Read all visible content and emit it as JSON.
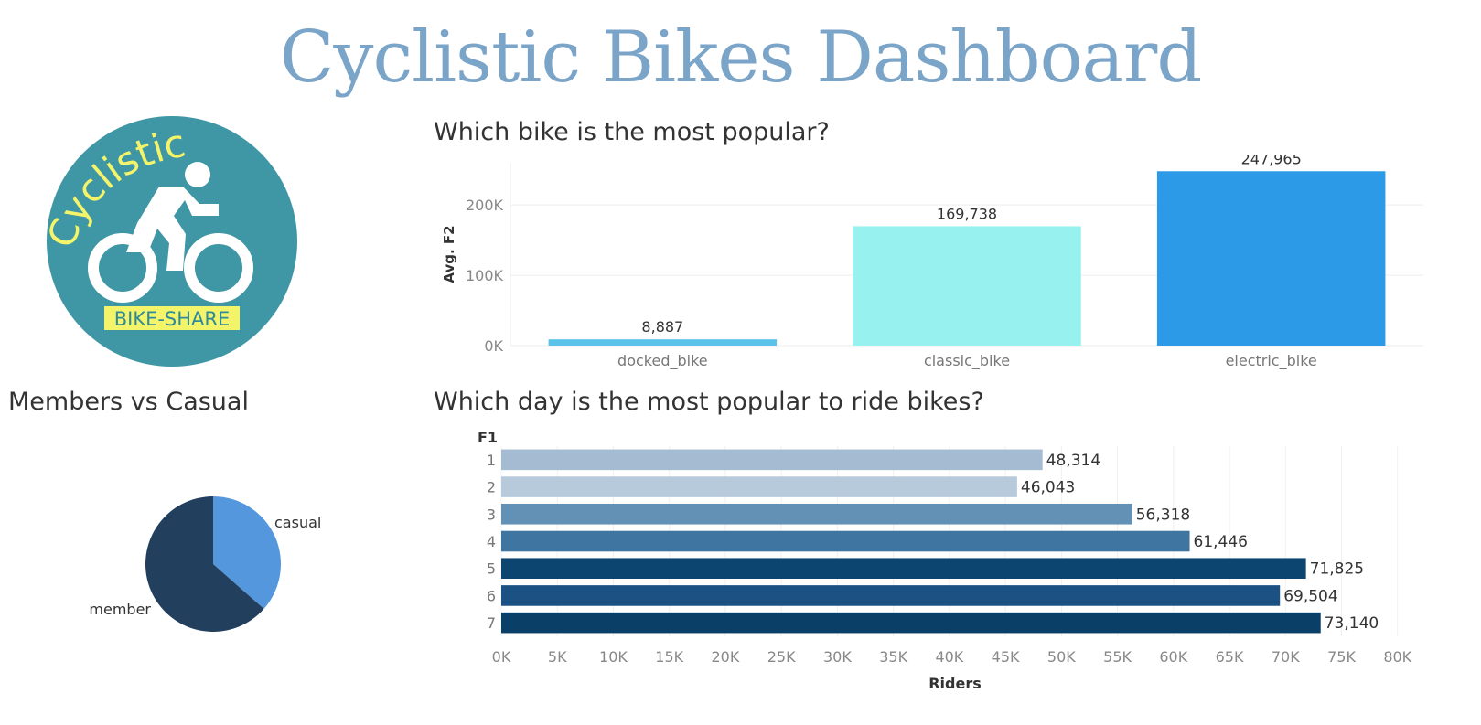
{
  "dashboard_title": "Cyclistic Bikes Dashboard",
  "logo": {
    "word": "Cyclistic",
    "banner": "BIKE-SHARE",
    "icon": "cyclist-icon",
    "bg_color": "#3f96a5",
    "accent_color": "#f4f46a"
  },
  "pie_title": "Members vs Casual",
  "bar_title": "Which bike is the most popular?",
  "day_title": "Which day is the most popular to ride bikes?",
  "chart_data": [
    {
      "type": "bar",
      "categories": [
        "docked_bike",
        "classic_bike",
        "electric_bike"
      ],
      "values": [
        8887,
        169738,
        247965
      ],
      "value_labels": [
        "8,887",
        "169,738",
        "247,965"
      ],
      "ylabel": "Avg. F2",
      "yticks": [
        "0K",
        "100K",
        "200K"
      ],
      "ytick_values": [
        0,
        100000,
        200000
      ],
      "ylim": [
        0,
        260000
      ],
      "colors": [
        "#5bc3ea",
        "#97f1ee",
        "#2d9ae8"
      ],
      "grid": true
    },
    {
      "type": "pie",
      "slices": [
        {
          "label": "casual",
          "value": 0.365,
          "color": "#5597dd"
        },
        {
          "label": "member",
          "value": 0.635,
          "color": "#223f5e"
        }
      ]
    },
    {
      "type": "bar",
      "orientation": "horizontal",
      "header": "F1",
      "categories": [
        "1",
        "2",
        "3",
        "4",
        "5",
        "6",
        "7"
      ],
      "values": [
        48314,
        46043,
        56318,
        61446,
        71825,
        69504,
        73140
      ],
      "value_labels": [
        "48,314",
        "46,043",
        "56,318",
        "61,446",
        "71,825",
        "69,504",
        "73,140"
      ],
      "colors": [
        "#a4bbd1",
        "#b7cadb",
        "#6390b5",
        "#3f75a1",
        "#0c4670",
        "#1b5283",
        "#0a4067"
      ],
      "xlabel": "Riders",
      "xticks": [
        "0K",
        "5K",
        "10K",
        "15K",
        "20K",
        "25K",
        "30K",
        "35K",
        "40K",
        "45K",
        "50K",
        "55K",
        "60K",
        "65K",
        "70K",
        "75K",
        "80K"
      ],
      "xtick_values": [
        0,
        5000,
        10000,
        15000,
        20000,
        25000,
        30000,
        35000,
        40000,
        45000,
        50000,
        55000,
        60000,
        65000,
        70000,
        75000,
        80000
      ],
      "xlim": [
        0,
        81000
      ],
      "grid": true
    }
  ]
}
